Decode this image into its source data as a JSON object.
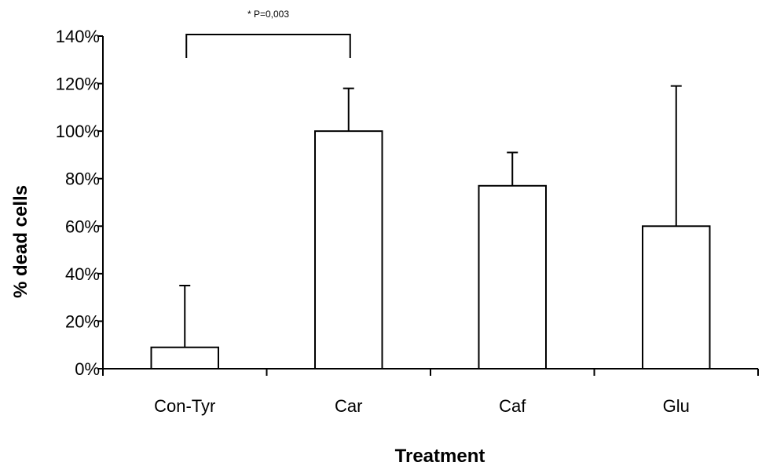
{
  "chart_data": {
    "type": "bar",
    "title": "",
    "xlabel": "Treatment",
    "ylabel": "% dead cells",
    "categories": [
      "Con-Tyr",
      "Car",
      "Caf",
      "Glu"
    ],
    "values": [
      9,
      100,
      77,
      60
    ],
    "error_upper": [
      35,
      118,
      91,
      119
    ],
    "ylim": [
      0,
      140
    ],
    "yticks": [
      0,
      20,
      40,
      60,
      80,
      100,
      120,
      140
    ],
    "ytick_labels": [
      "0%",
      "20%",
      "40%",
      "60%",
      "80%",
      "100%",
      "120%",
      "140%"
    ],
    "grid": false,
    "legend": "none",
    "colors": {
      "bar_fill": "#ffffff",
      "stroke": "#000000"
    },
    "annotation": {
      "text": "* P=0,003",
      "from_category": "Con-Tyr",
      "to_category": "Car"
    }
  }
}
